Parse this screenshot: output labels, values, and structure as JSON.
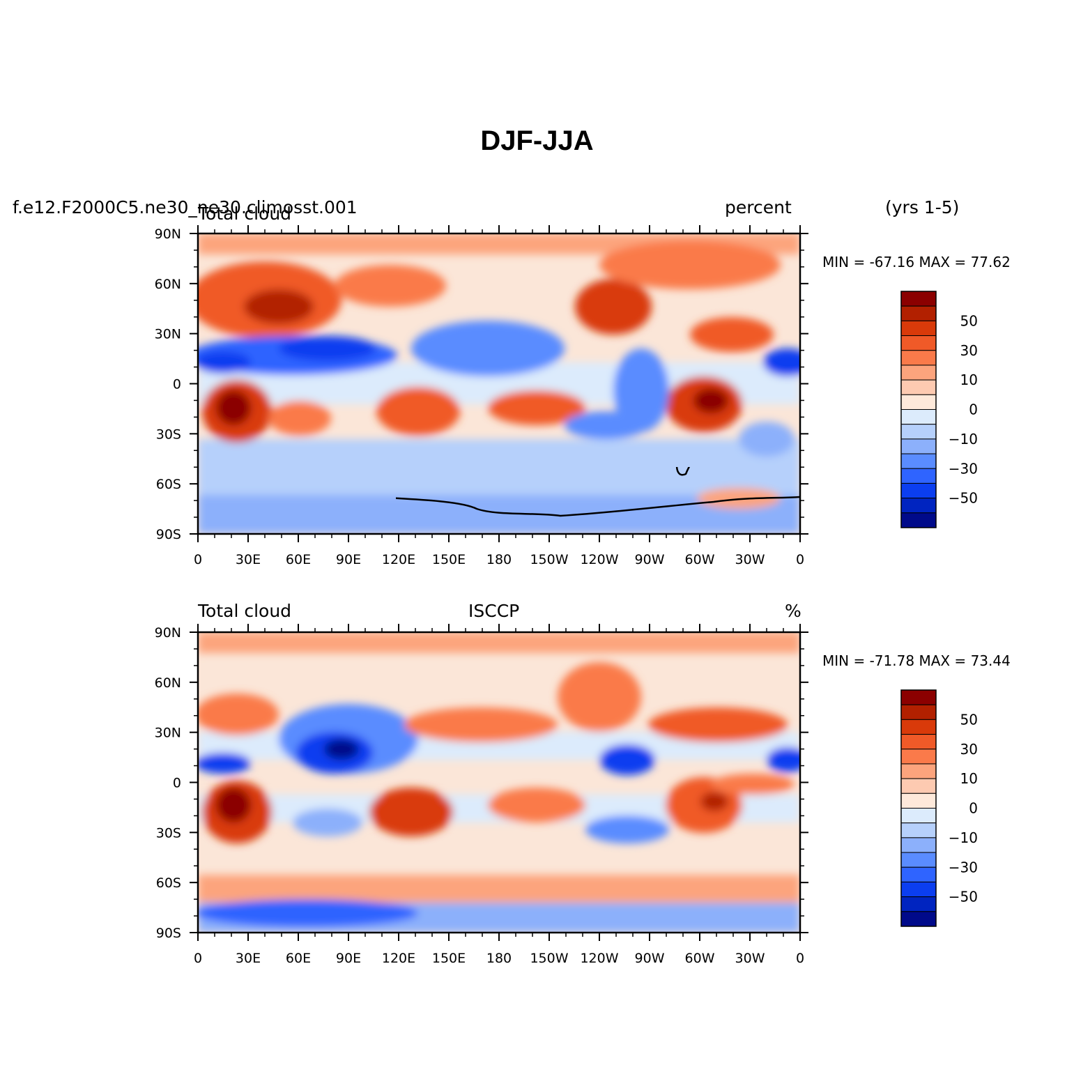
{
  "title": "DJF-JJA",
  "panels": [
    {
      "left_title": "f.e12.F2000C5.ne30_ne30.climosst.001",
      "left_subtitle": "Total cloud",
      "center_title": "",
      "right_title": "percent",
      "extra_title": "(yrs 1-5)",
      "min_label": "MIN =",
      "min_value": "-67.16",
      "max_label": "MAX =",
      "max_value": "77.62"
    },
    {
      "left_title": "Total cloud",
      "left_subtitle": "",
      "center_title": "ISCCP",
      "right_title": "%",
      "extra_title": "",
      "min_label": "MIN =",
      "min_value": "-71.78",
      "max_label": "MAX =",
      "max_value": "73.44"
    }
  ],
  "lat_labels": [
    "90N",
    "60N",
    "30N",
    "0",
    "30S",
    "60S",
    "90S"
  ],
  "lon_labels": [
    "0",
    "30E",
    "60E",
    "90E",
    "120E",
    "150E",
    "180",
    "150W",
    "120W",
    "90W",
    "60W",
    "30W",
    "0"
  ],
  "colorbar": {
    "labels": [
      "50",
      "30",
      "10",
      "0",
      "-10",
      "-30",
      "-50"
    ],
    "colors": [
      "#8b0000",
      "#b22000",
      "#d93a0a",
      "#f05a28",
      "#fa7a4a",
      "#fca47d",
      "#fdcab1",
      "#fee9da",
      "#dcebfc",
      "#b6d0fb",
      "#8cb0fb",
      "#5a8cff",
      "#2f64ff",
      "#0b3ef0",
      "#0024c0",
      "#000a8a"
    ]
  },
  "colors": {
    "ocean_neutral": "#fbe6d8",
    "positive_strong": "#b22000",
    "positive_mid": "#f05a28",
    "positive_weak": "#fca47d",
    "negative_weak": "#b6d0fb",
    "negative_mid": "#5a8cff",
    "negative_strong": "#0b3ef0"
  }
}
